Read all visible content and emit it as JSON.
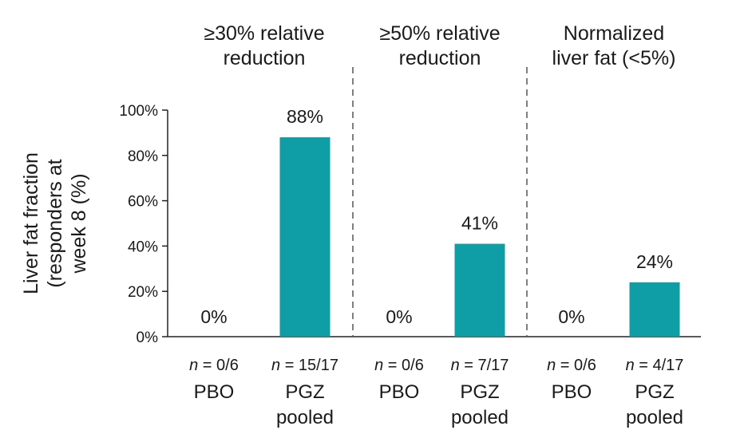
{
  "chart_data": {
    "type": "bar",
    "ylabel": [
      "Liver fat fraction",
      "(responders at",
      "week 8 (%)"
    ],
    "ylim": [
      0,
      100
    ],
    "yticks": [
      "0%",
      "20%",
      "40%",
      "60%",
      "80%",
      "100%"
    ],
    "bar_color": "#0f9ea6",
    "groups": [
      {
        "title": [
          "≥30% relative",
          "reduction"
        ],
        "bars": [
          {
            "n_label": "n = 0/6",
            "category": [
              "PBO"
            ],
            "value": 0,
            "value_label": "0%"
          },
          {
            "n_label": "n = 15/17",
            "category": [
              "PGZ",
              "pooled"
            ],
            "value": 88,
            "value_label": "88%"
          }
        ]
      },
      {
        "title": [
          "≥50% relative",
          "reduction"
        ],
        "bars": [
          {
            "n_label": "n = 0/6",
            "category": [
              "PBO"
            ],
            "value": 0,
            "value_label": "0%"
          },
          {
            "n_label": "n = 7/17",
            "category": [
              "PGZ",
              "pooled"
            ],
            "value": 41,
            "value_label": "41%"
          }
        ]
      },
      {
        "title": [
          "Normalized",
          "liver fat (<5%)"
        ],
        "bars": [
          {
            "n_label": "n = 0/6",
            "category": [
              "PBO"
            ],
            "value": 0,
            "value_label": "0%"
          },
          {
            "n_label": "n = 4/17",
            "category": [
              "PGZ",
              "pooled"
            ],
            "value": 24,
            "value_label": "24%"
          }
        ]
      }
    ]
  }
}
